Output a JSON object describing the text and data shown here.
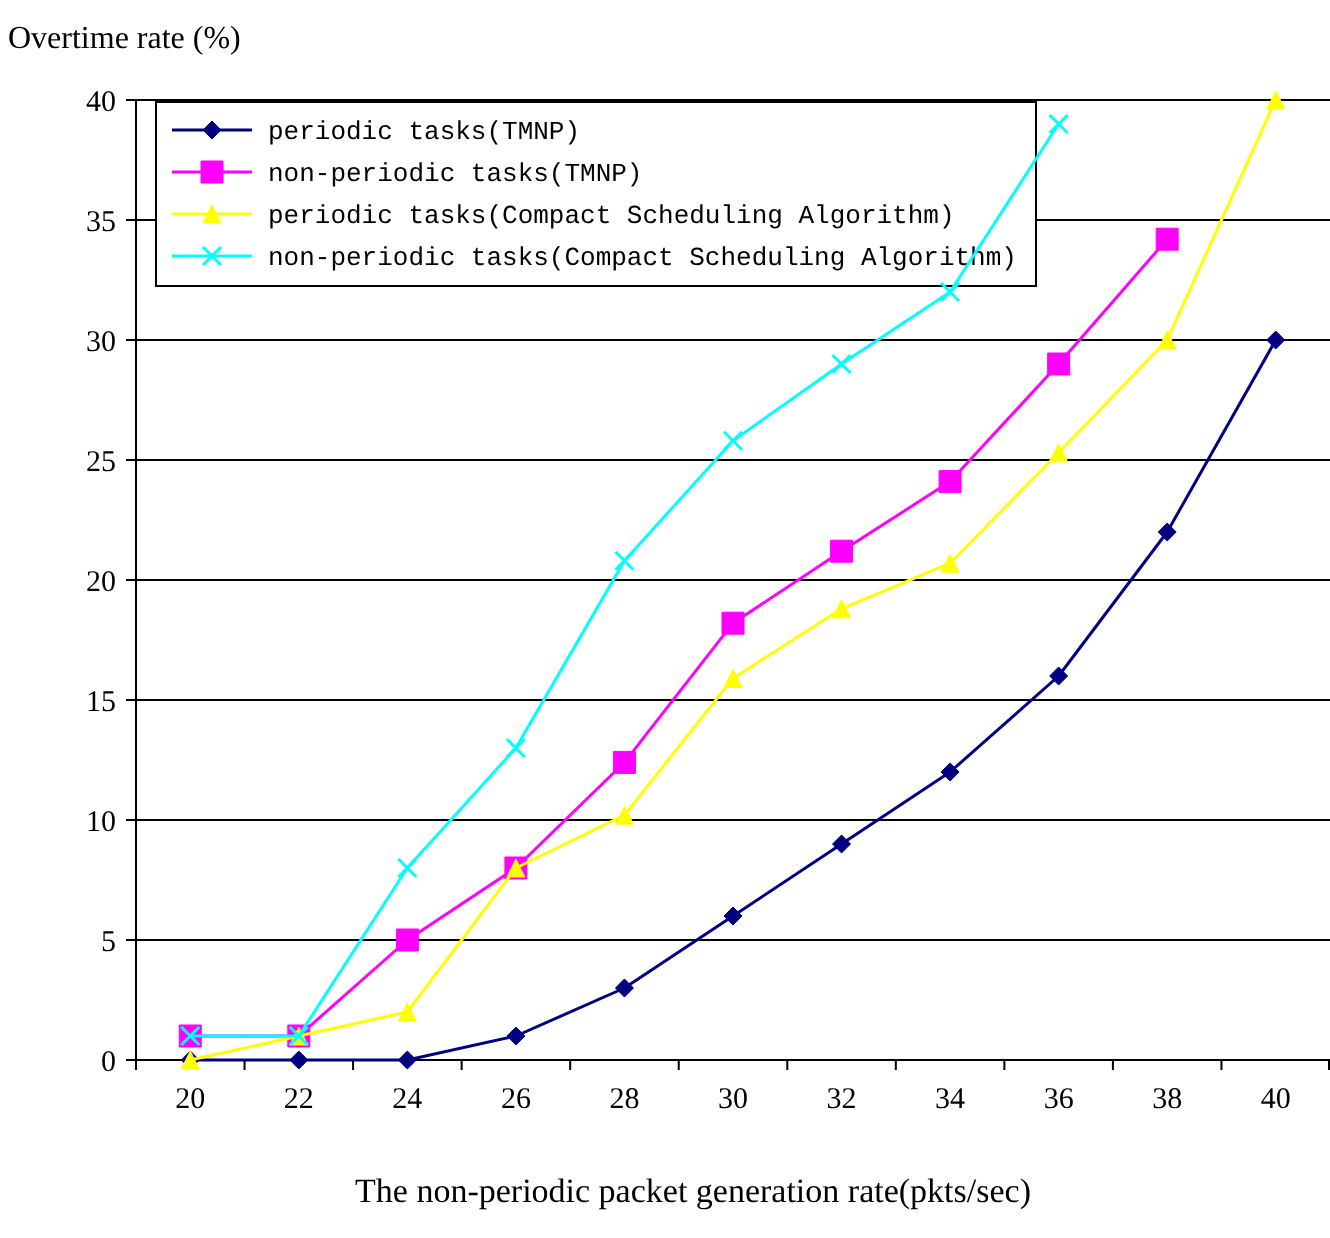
{
  "chart_data": {
    "type": "line",
    "xlabel": "The non-periodic packet generation rate(pkts/sec)",
    "ylabel": "Overtime rate (%)",
    "categories": [
      "20",
      "22",
      "24",
      "26",
      "28",
      "30",
      "32",
      "34",
      "36",
      "38",
      "40"
    ],
    "ylim": [
      0,
      40
    ],
    "yticks": [
      0,
      5,
      10,
      15,
      20,
      25,
      30,
      35,
      40
    ],
    "grid": "y",
    "legend": "top left",
    "series": [
      {
        "name": "periodic tasks(TMNP)",
        "color": "#000080",
        "marker": "diamond",
        "values": [
          0,
          0,
          0,
          1,
          3,
          6,
          9,
          12,
          16,
          22,
          30
        ]
      },
      {
        "name": "non-periodic tasks(TMNP)",
        "color": "#ff00ff",
        "marker": "square",
        "values": [
          1,
          1,
          5,
          8,
          12.4,
          18.2,
          21.2,
          24.1,
          29,
          34.2,
          null
        ]
      },
      {
        "name": "periodic tasks(Compact Scheduling Algorithm)",
        "color": "#ffff00",
        "marker": "triangle",
        "values": [
          0,
          1,
          2,
          8,
          10.2,
          15.9,
          18.8,
          20.7,
          25.3,
          30,
          40
        ]
      },
      {
        "name": "non-periodic tasks(Compact Scheduling Algorithm)",
        "color": "#00ffff",
        "marker": "cross",
        "values": [
          1,
          1,
          8,
          13,
          20.8,
          25.8,
          29,
          32,
          39,
          null,
          null
        ]
      }
    ]
  }
}
